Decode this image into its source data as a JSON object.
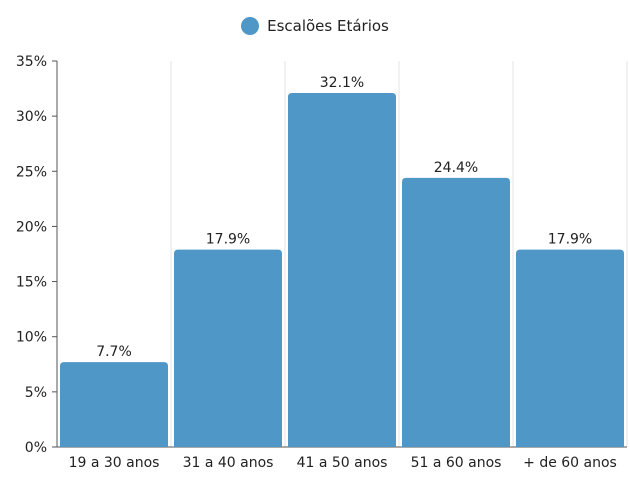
{
  "chart_data": {
    "type": "bar",
    "categories": [
      "19 a 30 anos",
      "31 a 40 anos",
      "41 a 50 anos",
      "51 a 60 anos",
      "+ de 60 anos"
    ],
    "series": [
      {
        "name": "Escalões Etários",
        "values": [
          7.7,
          17.9,
          32.1,
          24.4,
          17.9
        ],
        "color": "#4f97c7"
      }
    ],
    "data_labels": [
      "7.7%",
      "17.9%",
      "32.1%",
      "24.4%",
      "17.9%"
    ],
    "y_ticks": [
      0,
      5,
      10,
      15,
      20,
      25,
      30,
      35
    ],
    "y_tick_labels": [
      "0%",
      "5%",
      "10%",
      "15%",
      "20%",
      "25%",
      "30%",
      "35%"
    ],
    "ylim": [
      0,
      35
    ],
    "legend_position": "top-center",
    "grid": {
      "vertical": true,
      "horizontal": false
    },
    "title": "",
    "xlabel": "",
    "ylabel": ""
  }
}
